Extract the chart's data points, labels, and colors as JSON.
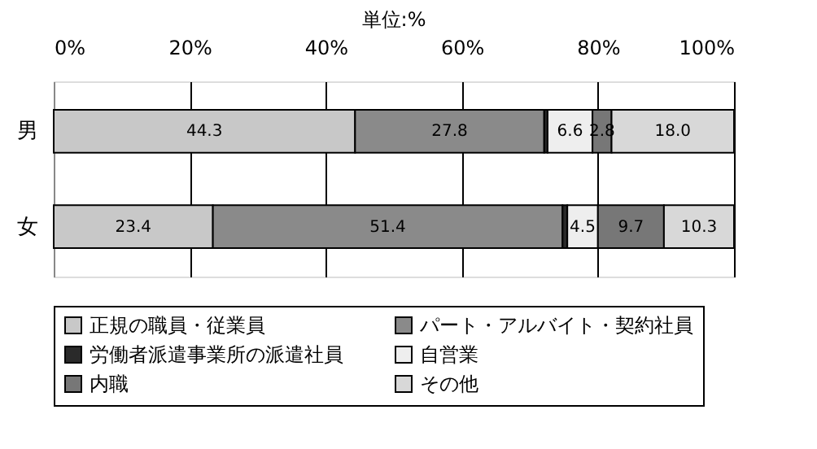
{
  "chart_data": {
    "type": "bar",
    "orientation": "horizontal",
    "stacked": true,
    "title": "単位:%",
    "categories": [
      "男",
      "女"
    ],
    "series": [
      {
        "name": "正規の職員・従業員",
        "color": "#c8c8c8",
        "values": [
          44.3,
          23.4
        ],
        "value_labels": [
          "44.3",
          "23.4"
        ]
      },
      {
        "name": "パート・アルバイト・契約社員",
        "color": "#8a8a8a",
        "values": [
          27.8,
          51.4
        ],
        "value_labels": [
          "27.8",
          "51.4"
        ]
      },
      {
        "name": "労働者派遣事業所の派遣社員",
        "color": "#2a2a2a",
        "values": [
          0.5,
          0.7
        ],
        "value_labels": [
          null,
          null
        ]
      },
      {
        "name": "自営業",
        "color": "#eeeeee",
        "values": [
          6.6,
          4.5
        ],
        "value_labels": [
          "6.6",
          "4.5"
        ]
      },
      {
        "name": "内職",
        "color": "#777777",
        "values": [
          2.8,
          9.7
        ],
        "value_labels": [
          "2.8",
          "9.7"
        ]
      },
      {
        "name": "その他",
        "color": "#d8d8d8",
        "values": [
          18.0,
          10.3
        ],
        "value_labels": [
          "18.0",
          "10.3"
        ]
      }
    ],
    "xlim": [
      0,
      100
    ],
    "xticks": [
      {
        "value": 0,
        "label": "0%"
      },
      {
        "value": 20,
        "label": "20%"
      },
      {
        "value": 40,
        "label": "40%"
      },
      {
        "value": 60,
        "label": "60%"
      },
      {
        "value": 80,
        "label": "80%"
      },
      {
        "value": 100,
        "label": "100%"
      }
    ],
    "grid": "x",
    "legend": "bottom"
  }
}
